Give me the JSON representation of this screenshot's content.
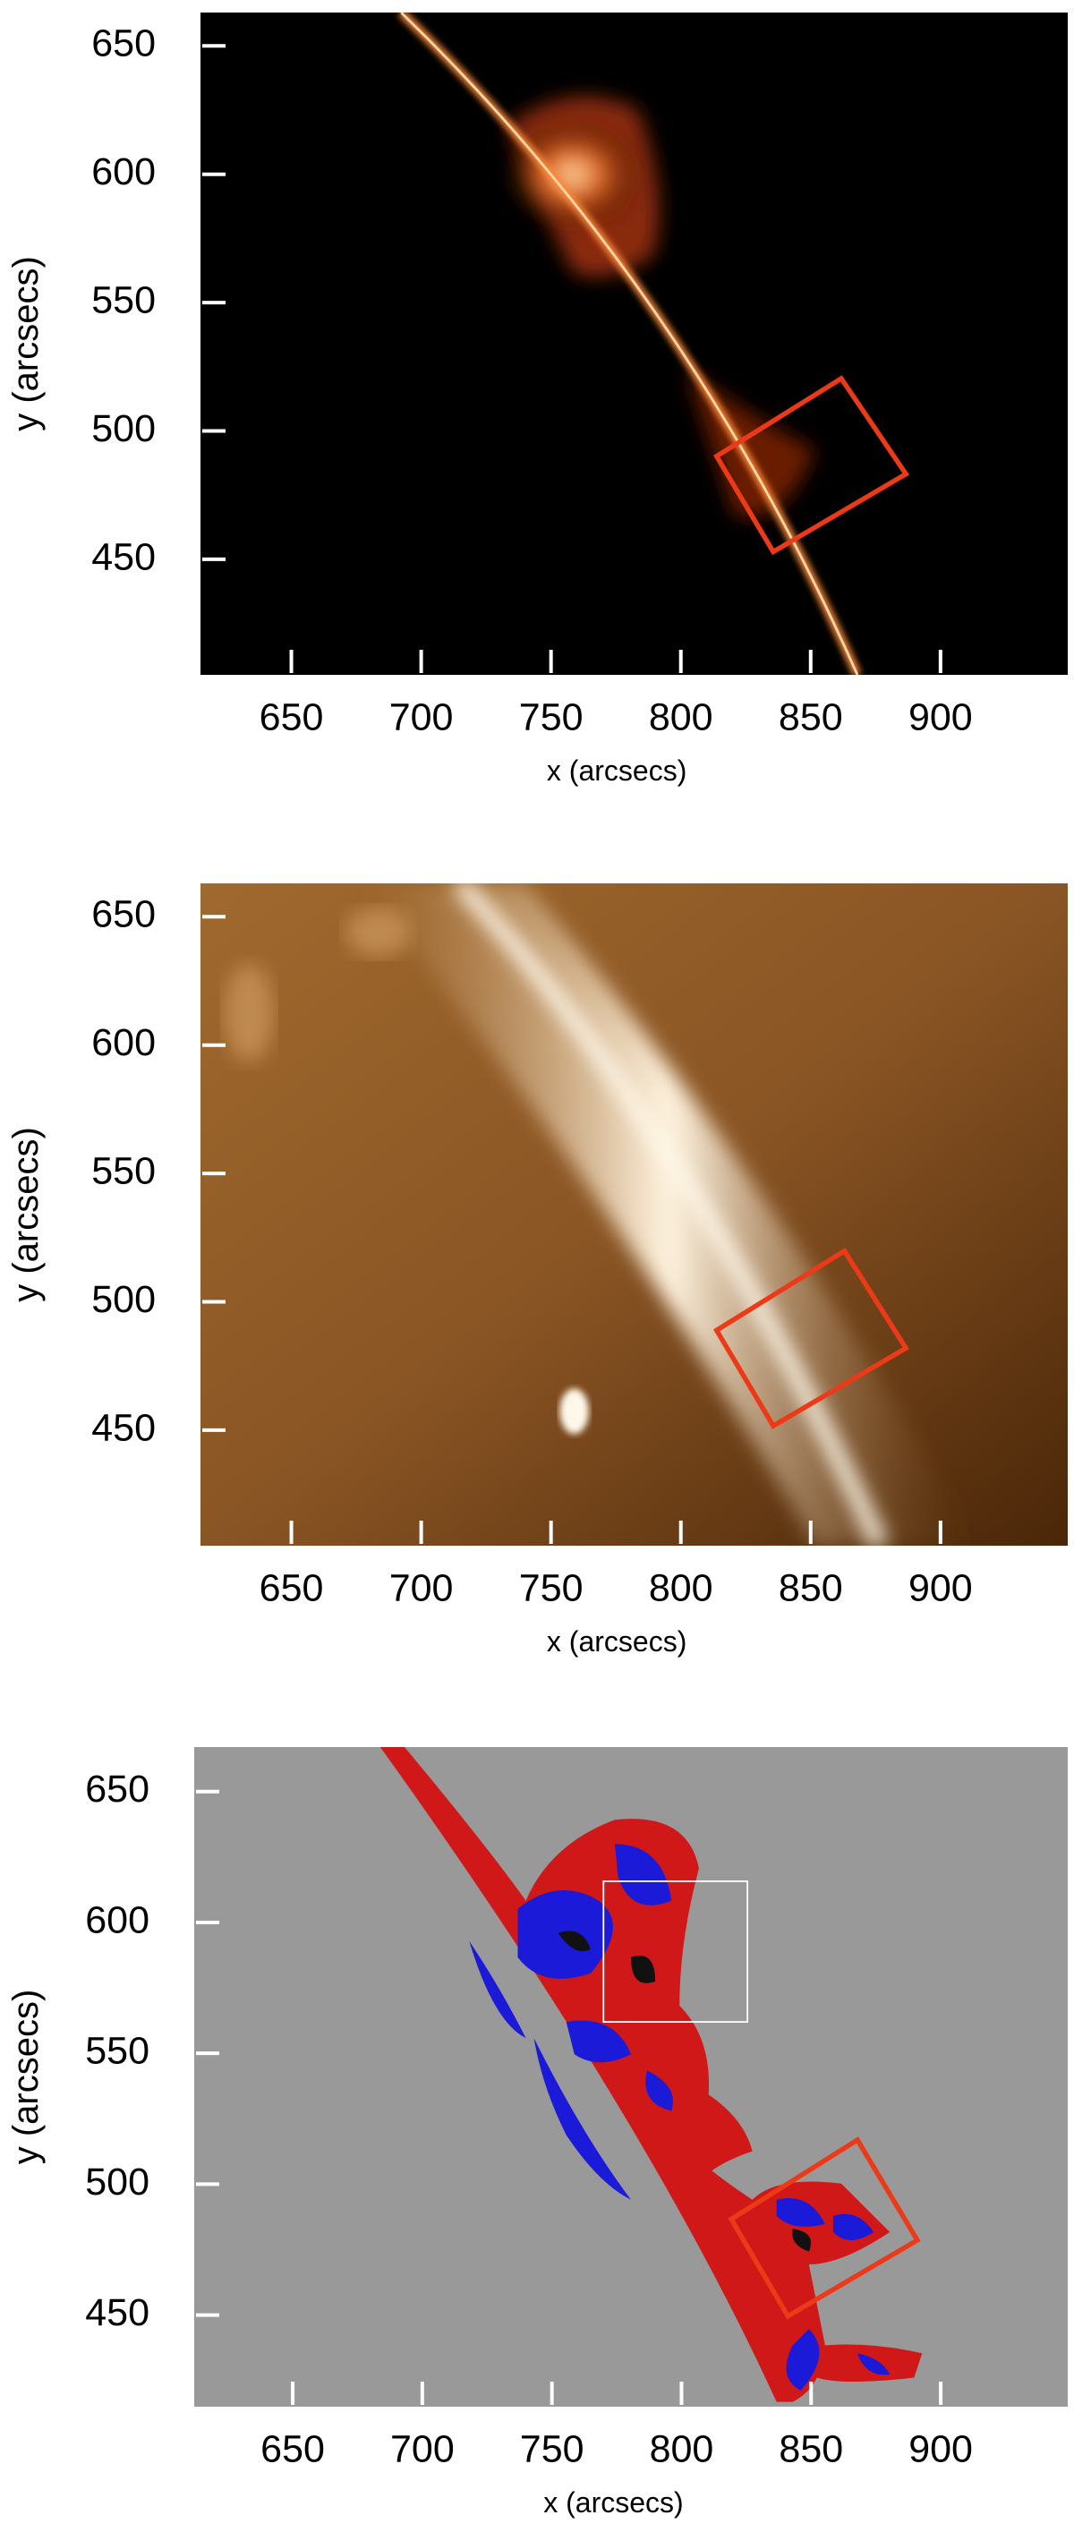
{
  "chart_data": [
    {
      "type": "image",
      "xlabel": "x (arcsecs)",
      "ylabel": "y (arcsecs)",
      "xlim": [
        615,
        949
      ],
      "ylim": [
        405,
        663
      ],
      "xticks": [
        650,
        700,
        750,
        800,
        850,
        900
      ],
      "yticks": [
        450,
        500,
        550,
        600,
        650
      ]
    },
    {
      "type": "image",
      "xlabel": "x (arcsecs)",
      "ylabel": "y (arcsecs)",
      "xlim": [
        615,
        949
      ],
      "ylim": [
        405,
        663
      ],
      "xticks": [
        650,
        700,
        750,
        800,
        850,
        900
      ],
      "yticks": [
        450,
        500,
        550,
        600,
        650
      ]
    },
    {
      "type": "image",
      "xlabel": "x (arcsecs)",
      "ylabel": "y (arcsecs)",
      "xlim": [
        612,
        949
      ],
      "ylim": [
        415,
        667
      ],
      "xticks": [
        650,
        700,
        750,
        800,
        850,
        900
      ],
      "yticks": [
        450,
        500,
        550,
        600,
        650
      ]
    }
  ]
}
